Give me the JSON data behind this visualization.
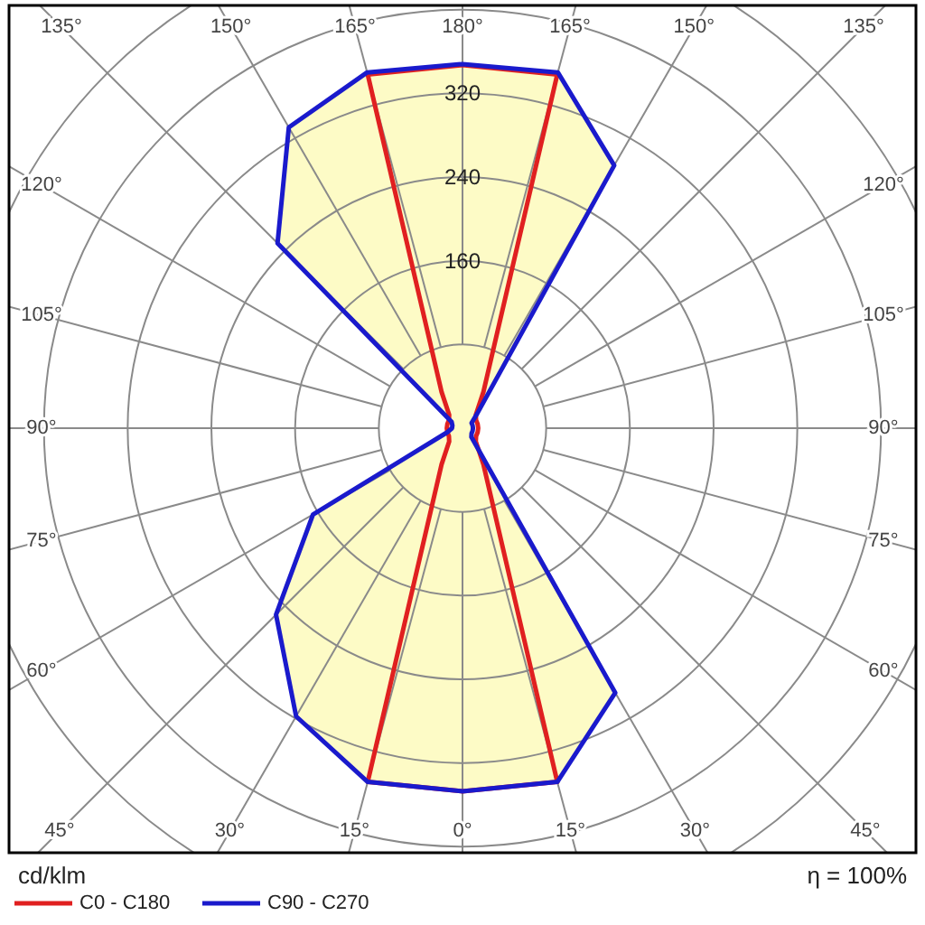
{
  "chart_data": {
    "type": "radar",
    "ylabel": "cd/klm",
    "annotations": [
      "η = 100%"
    ],
    "categories": [
      "180°",
      "165°",
      "150°",
      "135°",
      "120°",
      "105°",
      "90°",
      "75°",
      "60°",
      "45°",
      "30°",
      "15°",
      "0°",
      "15°",
      "30°",
      "45°",
      "60°",
      "75°",
      "90°",
      "105°",
      "120°",
      "135°",
      "150°",
      "165°"
    ],
    "series": [
      {
        "name": "C0 - C180",
        "color": "#e02020",
        "values": [
          347,
          350,
          40,
          18,
          15,
          15,
          15,
          15,
          15,
          18,
          40,
          350,
          347,
          350,
          40,
          18,
          15,
          15,
          15,
          15,
          15,
          18,
          40,
          350
        ]
      },
      {
        "name": "C90 - C270",
        "color": "#1a1acc",
        "values": [
          348,
          352,
          290,
          20,
          10,
          10,
          10,
          10,
          10,
          12,
          292,
          350,
          347,
          350,
          318,
          252,
          165,
          15,
          10,
          10,
          12,
          250,
          332,
          352
        ]
      }
    ],
    "ylim": [
      0,
      480
    ],
    "yticks": [
      160,
      240,
      320
    ],
    "grid": true,
    "legend": "bottom"
  }
}
